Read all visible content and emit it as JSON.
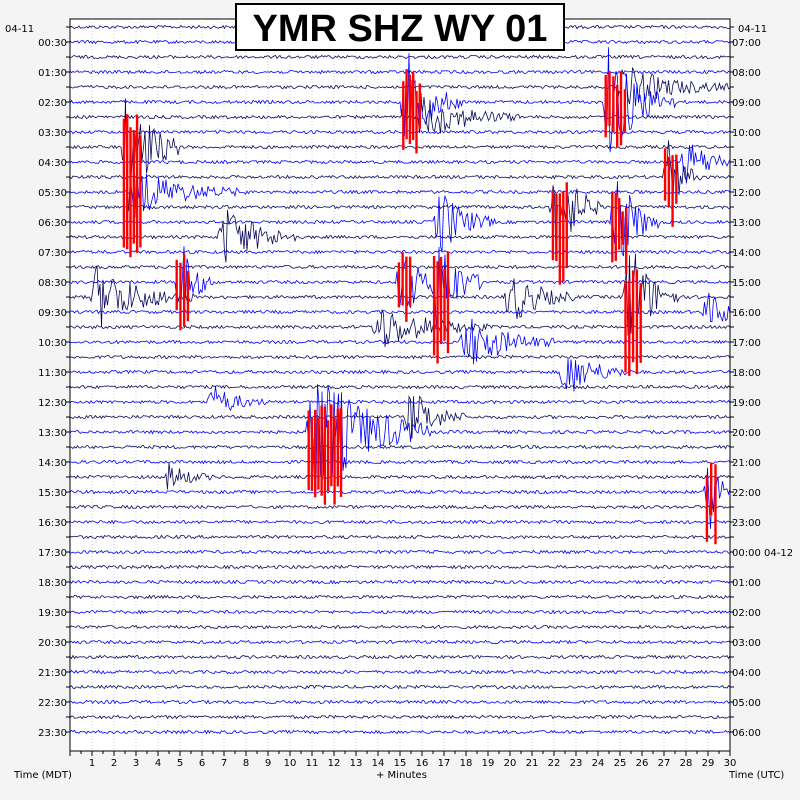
{
  "chart_data": {
    "type": "line",
    "title": "YMR SHZ WY 01",
    "left_date": "04-11",
    "right_date": "04-11",
    "left_axis_label": "Time (MDT)",
    "right_axis_label": "Time (UTC)",
    "x_axis_label": "+ Minutes",
    "xlim": [
      0,
      30
    ],
    "x_ticks": [
      "1",
      "2",
      "3",
      "4",
      "5",
      "6",
      "7",
      "8",
      "9",
      "10",
      "11",
      "12",
      "13",
      "14",
      "15",
      "16",
      "17",
      "18",
      "19",
      "20",
      "21",
      "22",
      "23",
      "24",
      "25",
      "26",
      "27",
      "28",
      "29",
      "30"
    ],
    "left_ticks": [
      "00:30",
      "01:30",
      "02:30",
      "03:30",
      "04:30",
      "05:30",
      "06:30",
      "07:30",
      "08:30",
      "09:30",
      "10:30",
      "11:30",
      "12:30",
      "13:30",
      "14:30",
      "15:30",
      "16:30",
      "17:30",
      "18:30",
      "19:30",
      "20:30",
      "21:30",
      "22:30",
      "23:30"
    ],
    "right_ticks": [
      "07:00",
      "08:00",
      "09:00",
      "10:00",
      "11:00",
      "12:00",
      "13:00",
      "14:00",
      "15:00",
      "16:00",
      "17:00",
      "18:00",
      "19:00",
      "20:00",
      "21:00",
      "22:00",
      "23:00",
      "00:00 04-12",
      "01:00",
      "02:00",
      "03:00",
      "04:00",
      "05:00",
      "06:00"
    ],
    "trace_rows": 48,
    "trace_colors": [
      "#0a0a5a",
      "#0000ff"
    ],
    "clip_color": "#ff0000",
    "events": [
      {
        "row": 27,
        "minute": 11.0,
        "width_min": 2.2,
        "amp": 3.0,
        "clipped": true,
        "span": 3
      },
      {
        "row": 5,
        "minute": 15.3,
        "width_min": 1.0,
        "amp": 2.2,
        "clipped": true,
        "span": 2
      },
      {
        "row": 5,
        "minute": 24.5,
        "width_min": 1.2,
        "amp": 2.6,
        "clipped": true,
        "span": 2
      },
      {
        "row": 8,
        "minute": 2.6,
        "width_min": 1.0,
        "amp": 2.8,
        "clipped": true,
        "span": 4
      },
      {
        "row": 12,
        "minute": 22.1,
        "width_min": 0.8,
        "amp": 2.5,
        "clipped": true,
        "span": 3
      },
      {
        "row": 13,
        "minute": 24.8,
        "width_min": 0.8,
        "amp": 2.4,
        "clipped": true,
        "span": 2
      },
      {
        "row": 17,
        "minute": 16.7,
        "width_min": 0.8,
        "amp": 2.6,
        "clipped": true,
        "span": 3
      },
      {
        "row": 18,
        "minute": 25.4,
        "width_min": 0.9,
        "amp": 2.6,
        "clipped": true,
        "span": 3
      },
      {
        "row": 17,
        "minute": 5.0,
        "width_min": 0.6,
        "amp": 2.0,
        "clipped": true,
        "span": 2
      },
      {
        "row": 17,
        "minute": 15.1,
        "width_min": 0.6,
        "amp": 2.0,
        "clipped": true,
        "span": 2
      },
      {
        "row": 10,
        "minute": 27.2,
        "width_min": 0.6,
        "amp": 1.6,
        "clipped": true,
        "span": 2
      },
      {
        "row": 31,
        "minute": 29.1,
        "width_min": 0.4,
        "amp": 2.0,
        "clipped": true,
        "span": 2
      },
      {
        "row": 13,
        "minute": 16.8,
        "width_min": 1.0,
        "amp": 1.5,
        "clipped": false,
        "span": 1
      },
      {
        "row": 14,
        "minute": 7.0,
        "width_min": 1.4,
        "amp": 1.4,
        "clipped": false,
        "span": 1
      },
      {
        "row": 21,
        "minute": 18.0,
        "width_min": 1.6,
        "amp": 1.2,
        "clipped": false,
        "span": 1
      },
      {
        "row": 18,
        "minute": 20.0,
        "width_min": 1.2,
        "amp": 1.2,
        "clipped": false,
        "span": 1
      },
      {
        "row": 20,
        "minute": 14.0,
        "width_min": 2.0,
        "amp": 1.0,
        "clipped": false,
        "span": 1
      },
      {
        "row": 23,
        "minute": 22.5,
        "width_min": 1.2,
        "amp": 1.1,
        "clipped": false,
        "span": 1
      },
      {
        "row": 26,
        "minute": 15.5,
        "width_min": 1.0,
        "amp": 1.2,
        "clipped": false,
        "span": 1
      },
      {
        "row": 18,
        "minute": 1.2,
        "width_min": 1.8,
        "amp": 1.4,
        "clipped": false,
        "span": 1
      },
      {
        "row": 6,
        "minute": 16.0,
        "width_min": 1.8,
        "amp": 1.0,
        "clipped": false,
        "span": 1
      },
      {
        "row": 4,
        "minute": 25.0,
        "width_min": 2.0,
        "amp": 1.0,
        "clipped": false,
        "span": 1
      },
      {
        "row": 11,
        "minute": 3.0,
        "width_min": 2.0,
        "amp": 1.0,
        "clipped": false,
        "span": 1
      },
      {
        "row": 9,
        "minute": 28.0,
        "width_min": 1.2,
        "amp": 0.9,
        "clipped": false,
        "span": 1
      },
      {
        "row": 19,
        "minute": 29.0,
        "width_min": 1.0,
        "amp": 0.8,
        "clipped": false,
        "span": 1
      },
      {
        "row": 25,
        "minute": 6.5,
        "width_min": 1.0,
        "amp": 0.7,
        "clipped": false,
        "span": 1
      },
      {
        "row": 30,
        "minute": 4.5,
        "width_min": 0.8,
        "amp": 0.6,
        "clipped": false,
        "span": 1
      }
    ]
  }
}
